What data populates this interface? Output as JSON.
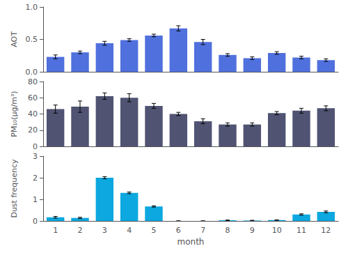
{
  "chart_data": [
    {
      "type": "bar",
      "ylabel": "AOT",
      "categories": [
        "1",
        "2",
        "3",
        "4",
        "5",
        "6",
        "7",
        "8",
        "9",
        "10",
        "11",
        "12"
      ],
      "values": [
        0.23,
        0.3,
        0.44,
        0.49,
        0.56,
        0.67,
        0.46,
        0.26,
        0.21,
        0.29,
        0.22,
        0.18
      ],
      "errors": [
        0.03,
        0.02,
        0.03,
        0.02,
        0.02,
        0.04,
        0.04,
        0.02,
        0.02,
        0.02,
        0.02,
        0.02
      ],
      "ylim": [
        0.0,
        1.0
      ],
      "yticks": [
        {
          "value": 0,
          "label": "0.0"
        },
        0.5,
        {
          "value": 1,
          "label": "1.0"
        }
      ],
      "grid": false,
      "tick_labels": "y"
    },
    {
      "type": "bar",
      "ylabel": "PM₁₀(μg/m³)",
      "categories": [
        "1",
        "2",
        "3",
        "4",
        "5",
        "6",
        "7",
        "8",
        "9",
        "10",
        "11",
        "12"
      ],
      "values": [
        46,
        49,
        62,
        60,
        50,
        40,
        31,
        27,
        27,
        41,
        44,
        47
      ],
      "errors": [
        5,
        7,
        4,
        5,
        3,
        2,
        3,
        2,
        2,
        2,
        3,
        3
      ],
      "ylim": [
        0,
        80
      ],
      "yticks": [
        0,
        20,
        40,
        60,
        80
      ],
      "grid": false,
      "tick_labels": "y"
    },
    {
      "type": "bar",
      "ylabel": "Dust frequency",
      "xlabel": "month",
      "categories": [
        "1",
        "2",
        "3",
        "4",
        "5",
        "6",
        "7",
        "8",
        "9",
        "10",
        "11",
        "12"
      ],
      "values": [
        0.17,
        0.14,
        2.0,
        1.3,
        0.67,
        0.0,
        0.0,
        0.03,
        0.02,
        0.04,
        0.3,
        0.42
      ],
      "errors": [
        0.04,
        0.03,
        0.05,
        0.04,
        0.03,
        0.0,
        0.0,
        0.01,
        0.01,
        0.01,
        0.03,
        0.04
      ],
      "ylim": [
        0,
        3
      ],
      "yticks": [
        0,
        1,
        2,
        3
      ],
      "grid": false
    }
  ]
}
